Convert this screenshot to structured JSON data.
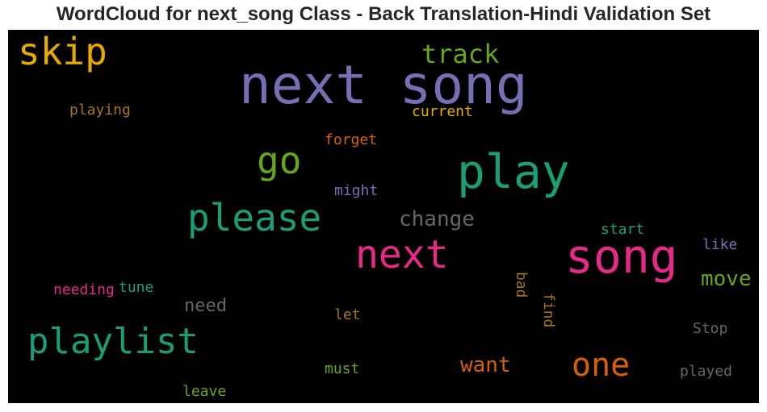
{
  "chart_data": {
    "type": "wordcloud",
    "title": "WordCloud for next_song Class - Back Translation-Hindi Validation Set",
    "background": "#000000",
    "words": [
      {
        "text": "next song",
        "color": "#7570b3"
      },
      {
        "text": "song",
        "color": "#e7298a"
      },
      {
        "text": "play",
        "color": "#1b9e77"
      },
      {
        "text": "next",
        "color": "#e7298a"
      },
      {
        "text": "please",
        "color": "#1b9e77"
      },
      {
        "text": "playlist",
        "color": "#1b9e77"
      },
      {
        "text": "skip",
        "color": "#e6ab02"
      },
      {
        "text": "go",
        "color": "#66a61e"
      },
      {
        "text": "one",
        "color": "#d95f02"
      },
      {
        "text": "track",
        "color": "#66a61e"
      },
      {
        "text": "change",
        "color": "#666666"
      },
      {
        "text": "want",
        "color": "#d95f02"
      },
      {
        "text": "move",
        "color": "#66a61e"
      },
      {
        "text": "need",
        "color": "#666666"
      },
      {
        "text": "playing",
        "color": "#a6761d"
      },
      {
        "text": "current",
        "color": "#e6ab02"
      },
      {
        "text": "forget",
        "color": "#d95f02"
      },
      {
        "text": "might",
        "color": "#7570b3"
      },
      {
        "text": "start",
        "color": "#1b9e77"
      },
      {
        "text": "like",
        "color": "#7570b3"
      },
      {
        "text": "needing",
        "color": "#e7298a"
      },
      {
        "text": "tune",
        "color": "#1b9e77"
      },
      {
        "text": "bad",
        "color": "#a6761d"
      },
      {
        "text": "find",
        "color": "#a6761d"
      },
      {
        "text": "let",
        "color": "#a6761d"
      },
      {
        "text": "Stop",
        "color": "#666666"
      },
      {
        "text": "must",
        "color": "#66a61e"
      },
      {
        "text": "played",
        "color": "#666666"
      },
      {
        "text": "leave",
        "color": "#66a61e"
      }
    ]
  }
}
